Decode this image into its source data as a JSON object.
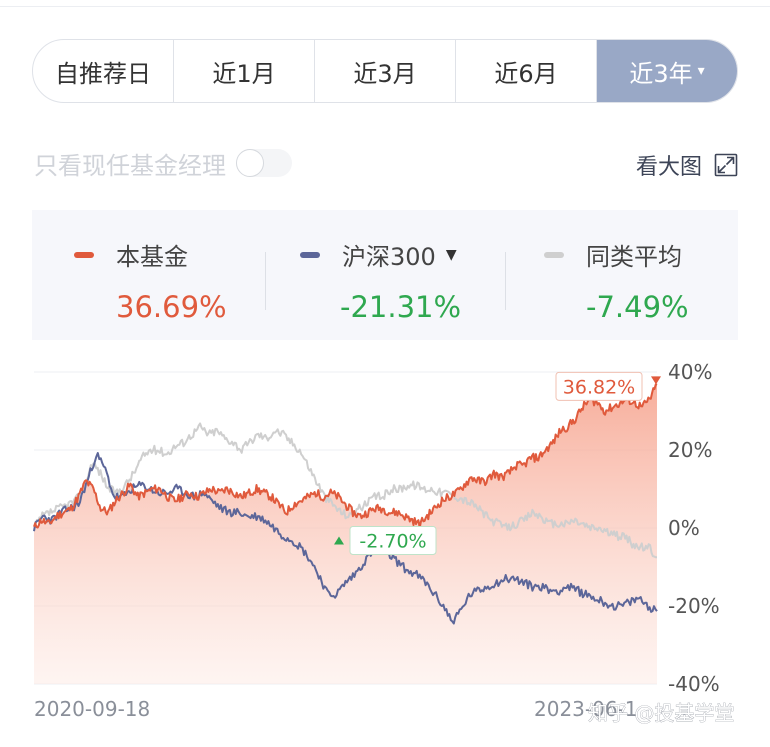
{
  "tabs": [
    {
      "label": "自推荐日",
      "active": false
    },
    {
      "label": "近1月",
      "active": false
    },
    {
      "label": "近3月",
      "active": false
    },
    {
      "label": "近6月",
      "active": false
    },
    {
      "label": "近3年",
      "active": true
    }
  ],
  "tab_active_caret": "▾",
  "manager_filter": {
    "label": "只看现任基金经理",
    "enabled": false
  },
  "big_chart_label": "看大图",
  "legend": [
    {
      "name": "本基金",
      "value": "36.69%",
      "color": "#e05a3c",
      "value_color": "#e05a3c"
    },
    {
      "name": "沪深300",
      "value": "-21.31%",
      "color": "#5c6699",
      "value_color": "#2fa84f",
      "has_dropdown": true,
      "dropdown_icon": "caret-down-icon"
    },
    {
      "name": "同类平均",
      "value": "-7.49%",
      "color": "#cfcfcf",
      "value_color": "#2fa84f"
    }
  ],
  "colors": {
    "accent": "#99a8c6",
    "fund": "#e05a3c",
    "hs300": "#5c6699",
    "avg": "#cfcfcf",
    "up": "#e05a3c",
    "down": "#2fa84f"
  },
  "chart_data": {
    "type": "line",
    "x_start_label": "2020-09-18",
    "x_end_label": "2023-06-1",
    "yticks": [
      "40%",
      "20%",
      "0%",
      "-20%",
      "-40%"
    ],
    "ylim": [
      -40,
      40
    ],
    "grid": true,
    "annotations": {
      "max": {
        "label": "36.82%",
        "value": 36.82
      },
      "min": {
        "label": "-2.70%",
        "value": -2.7
      }
    },
    "series": [
      {
        "name": "本基金",
        "color": "#e05a3c",
        "area": true,
        "values": [
          0,
          2,
          1,
          3,
          4,
          5,
          8,
          12,
          10,
          5,
          4,
          7,
          9,
          11,
          8,
          9,
          10,
          10,
          8,
          7,
          8,
          9,
          8,
          9,
          10,
          9,
          10,
          9,
          8,
          9,
          10,
          9,
          8,
          6,
          4,
          6,
          7,
          8,
          9,
          8,
          9,
          8,
          6,
          4,
          3,
          4,
          5,
          5,
          4,
          4,
          3,
          2,
          1,
          3,
          5,
          7,
          8,
          9,
          11,
          13,
          12,
          12,
          14,
          13,
          14,
          16,
          16,
          18,
          18,
          20,
          22,
          25,
          26,
          28,
          31,
          33,
          32,
          30,
          31,
          32,
          33,
          32,
          31,
          33,
          36.69
        ]
      },
      {
        "name": "沪深300",
        "color": "#5c6699",
        "values": [
          0,
          3,
          2,
          4,
          5,
          6,
          12,
          19,
          15,
          8,
          8,
          10,
          11,
          10,
          9,
          9,
          10,
          9,
          8,
          9,
          7,
          5,
          4,
          4,
          3,
          3,
          2,
          0,
          -2,
          -3,
          -5,
          -8,
          -12,
          -17,
          -17,
          -14,
          -12,
          -9,
          -6,
          -6,
          -7,
          -9,
          -11,
          -12,
          -14,
          -17,
          -20,
          -24,
          -21,
          -17,
          -16,
          -15,
          -14,
          -13,
          -13,
          -14,
          -15,
          -15,
          -16,
          -16,
          -15,
          -16,
          -17,
          -18,
          -19,
          -20,
          -20,
          -19,
          -18,
          -20,
          -21.31
        ]
      },
      {
        "name": "同类平均",
        "color": "#cfcfcf",
        "values": [
          0,
          3,
          4,
          5,
          6,
          7,
          10,
          17,
          14,
          10,
          9,
          11,
          14,
          18,
          20,
          20,
          19,
          21,
          22,
          24,
          26,
          24,
          25,
          23,
          22,
          20,
          22,
          24,
          23,
          25,
          24,
          22,
          20,
          16,
          12,
          8,
          6,
          4,
          3,
          5,
          6,
          8,
          8,
          10,
          10,
          11,
          11,
          10,
          10,
          9,
          9,
          8,
          7,
          6,
          4,
          2,
          1,
          0,
          1,
          2,
          4,
          3,
          1,
          1,
          1,
          2,
          1,
          0,
          0,
          -1,
          -2,
          -2,
          -4,
          -5,
          -5,
          -7.49
        ]
      }
    ]
  }
}
